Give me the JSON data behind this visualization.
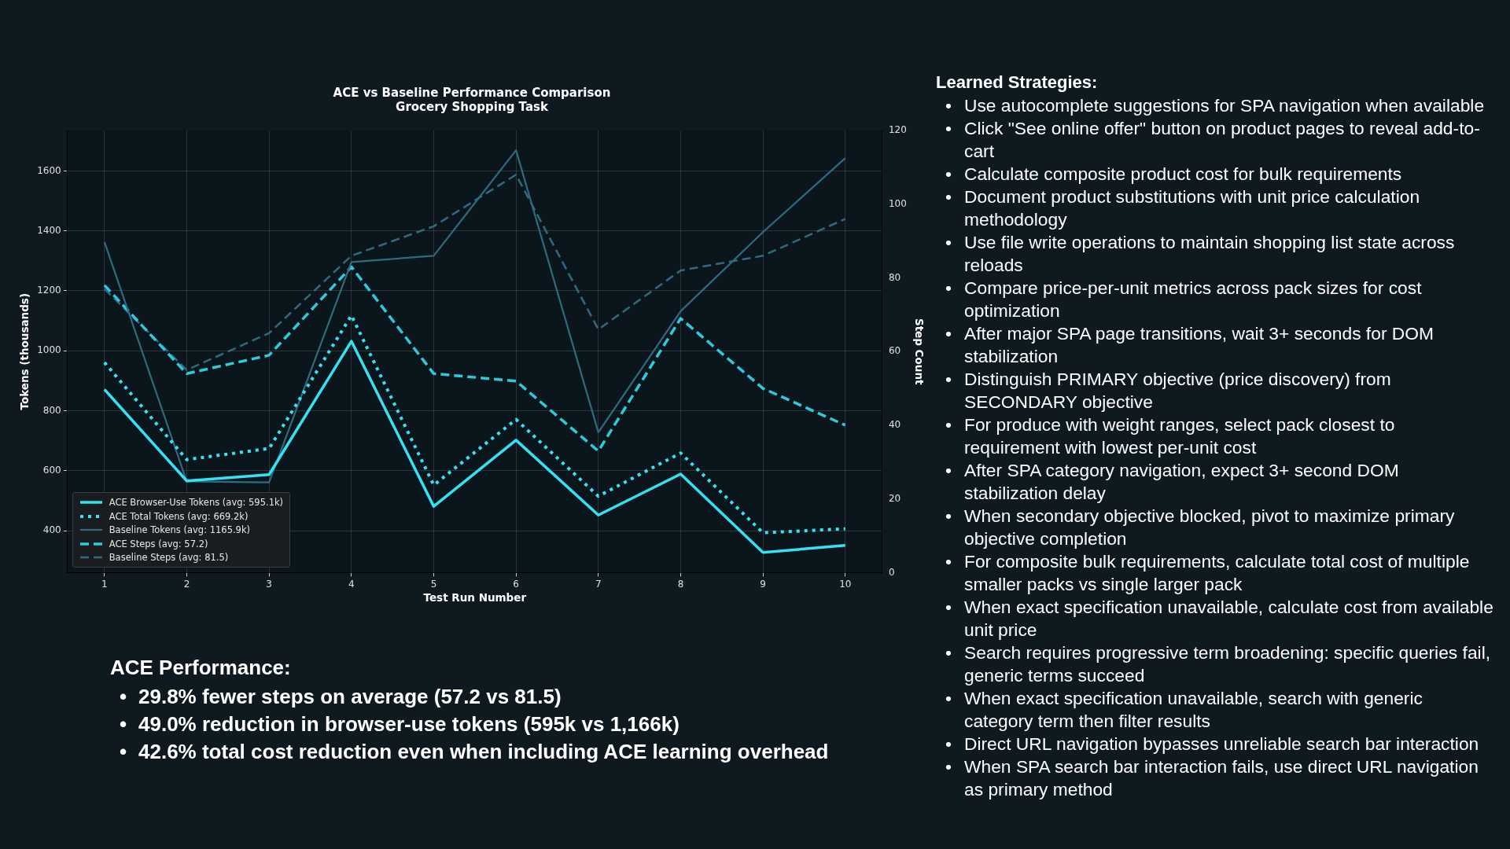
{
  "chart_data": [
    {
      "type": "line",
      "title": "ACE vs Baseline Performance Comparison\nGrocery Shopping Task",
      "xlabel": "Test Run Number",
      "ylabel": "Tokens (thousands)",
      "y2label": "Step Count",
      "x": [
        1,
        2,
        3,
        4,
        5,
        6,
        7,
        8,
        9,
        10
      ],
      "series": [
        {
          "name": "ACE Browser-Use Tokens (avg: 595.1k)",
          "color": "#33e3f3",
          "line_style": "solid",
          "values": [
            871,
            566,
            587,
            1032,
            481,
            702,
            452,
            589,
            327,
            351
          ]
        },
        {
          "name": "ACE Total Tokens (avg: 669.2k)",
          "color": "#33e3f3",
          "line_style": "dotted",
          "values": [
            961,
            637,
            674,
            1118,
            552,
            771,
            515,
            659,
            393,
            406
          ]
        },
        {
          "name": "Baseline Tokens (avg: 1165.9k)",
          "color": "#2e6a80",
          "line_style": "solid",
          "values": [
            1363,
            564,
            561,
            1296,
            1317,
            1669,
            728,
            1132,
            1396,
            1643
          ]
        },
        {
          "name": "ACE Steps (avg: 57.2)",
          "color": "#2ccbdb",
          "line_style": "dashed",
          "axis": "y2",
          "values": [
            78,
            54,
            59,
            83,
            54,
            52,
            33,
            69,
            50,
            40
          ]
        },
        {
          "name": "Baseline Steps (avg: 81.5)",
          "color": "#2e6a80",
          "line_style": "dashed",
          "axis": "y2",
          "values": [
            77,
            55,
            65,
            86,
            94,
            108,
            66,
            82,
            86,
            96
          ]
        }
      ],
      "xlim": [
        0.55,
        10.45
      ],
      "xticks": [
        1,
        2,
        3,
        4,
        5,
        6,
        7,
        8,
        9,
        10
      ],
      "ylim": [
        260,
        1735
      ],
      "yticks": [
        400,
        600,
        800,
        1000,
        1200,
        1400,
        1600
      ],
      "y2lim": [
        0,
        120
      ],
      "y2ticks": [
        0,
        20,
        40,
        60,
        80,
        100,
        120
      ],
      "grid": true,
      "legend": "bottom left",
      "marker": "none"
    },
    {
      "type": "other",
      "title": "ACE Performance:",
      "annotations": [
        "• 29.8% fewer steps on average (57.2 vs 81.5)",
        "• 49.0% reduction in browser-use tokens (595k vs 1,166k)",
        "• 42.6% total cost reduction even when including ACE learning overhead"
      ]
    },
    {
      "type": "other",
      "title": "Learned Strategies:",
      "annotations": [
        "• Use autocomplete suggestions for SPA navigation when available",
        "• Click \"See online offer\" button on product pages to reveal add-to-cart",
        "• Calculate composite product cost for bulk requirements",
        "• Document product substitutions with unit price calculation methodology",
        "• Use file write operations to maintain shopping list state across reloads",
        "• Compare price-per-unit metrics across pack sizes for cost optimization",
        "• After major SPA page transitions, wait 3+ seconds for DOM stabilization",
        "• Distinguish PRIMARY objective (price discovery) from SECONDARY objective",
        "• For produce with weight ranges, select pack closest to requirement with lowest per-unit cost",
        "• After SPA category navigation, expect 3+ second DOM stabilization delay",
        "• When secondary objective blocked, pivot to maximize primary objective completion",
        "• For composite bulk requirements, calculate total cost of multiple smaller packs vs single larger pack",
        "• When exact specification unavailable, calculate cost from available unit price",
        "• Search requires progressive term broadening: specific queries fail, generic terms succeed",
        "• When exact specification unavailable, search with generic category term then filter results",
        "• Direct URL navigation bypasses unreliable search bar interaction",
        "• When SPA search bar interaction fails, use direct URL navigation as primary method"
      ]
    }
  ]
}
